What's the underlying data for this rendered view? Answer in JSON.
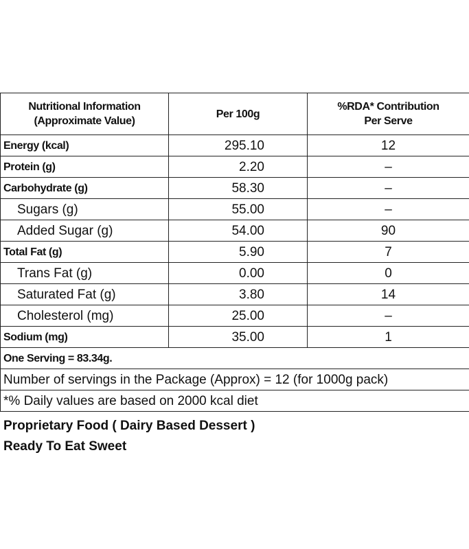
{
  "table": {
    "header": [
      [
        "Nutritional Information",
        "(Approximate Value)"
      ],
      [
        "Per 100g"
      ],
      [
        "%RDA* Contribution",
        "Per Serve"
      ]
    ],
    "rows": [
      [
        "Energy (kcal)",
        "295.10",
        "12"
      ],
      [
        "Protein (g)",
        "2.20",
        "–"
      ],
      [
        "Carbohydrate (g)",
        "58.30",
        "–"
      ],
      [
        "Sugars (g)",
        "55.00",
        "–"
      ],
      [
        "Added Sugar (g)",
        "54.00",
        "90"
      ],
      [
        "Total Fat (g)",
        "5.90",
        "7"
      ],
      [
        "Trans Fat (g)",
        "0.00",
        "0"
      ],
      [
        "Saturated Fat (g)",
        "3.80",
        "14"
      ],
      [
        "Cholesterol (mg)",
        "25.00",
        "–"
      ],
      [
        "Sodium (mg)",
        "35.00",
        "1"
      ]
    ],
    "notes": [
      "One Serving = 83.34g.",
      "Number of servings in the Package (Approx) = 12 (for 1000g pack)",
      "*% Daily values are based on 2000 kcal diet"
    ]
  },
  "footer": [
    "Proprietary Food ( Dairy Based Dessert )",
    "Ready To Eat Sweet"
  ]
}
